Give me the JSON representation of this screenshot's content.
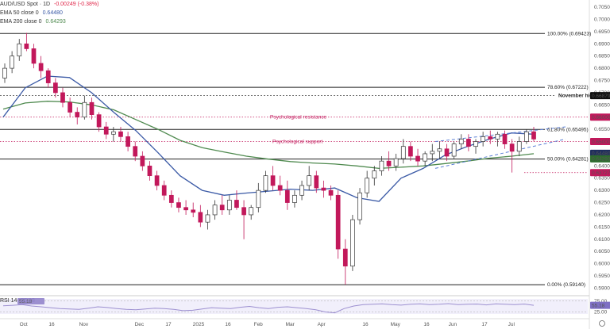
{
  "header": {
    "symbol": "AUD/USD Spot · 1D",
    "change": "-0.00249 (-0.38%)",
    "ema50_label": "EMA 50 close 0",
    "ema50_value": "0.64480",
    "ema200_label": "EMA 200 close 0",
    "ema200_value": "0.64293"
  },
  "rsi": {
    "label": "RSI 14",
    "value": "55.18",
    "value_badge": "55.18",
    "value_axis": "55.18",
    "levels": [
      "75.00",
      "25.00"
    ]
  },
  "colors": {
    "ema50": "#3b5aa6",
    "ema200": "#4f8a4f",
    "candle_up": "#ffffff",
    "candle_down": "#c2185b",
    "annotation": "#c2185b",
    "trendline": "#5b7fd6",
    "rsi": "#9c8fd0"
  },
  "chart_data": {
    "type": "candlestick",
    "ylim": [
      0.5885,
      0.706
    ],
    "y_ticks": [
      "0.70500",
      "0.70000",
      "0.69500",
      "0.69000",
      "0.68500",
      "0.68000",
      "0.67500",
      "0.67000",
      "0.66500",
      "0.66000",
      "0.65500",
      "0.65000",
      "0.64500",
      "0.64000",
      "0.63500",
      "0.63000",
      "0.62500",
      "0.62000",
      "0.61500",
      "0.61000",
      "0.60500",
      "0.60000",
      "0.59500",
      "0.59000"
    ],
    "x_ticks": [
      "Oct",
      "16",
      "Nov",
      "Dec",
      "17",
      "2025",
      "16",
      "Feb",
      "Mar",
      "Apr",
      "16",
      "May",
      "16",
      "Jun",
      "17",
      "Jul"
    ],
    "fib_levels": [
      {
        "label": "100.00% (0.69423)",
        "value": 0.69423
      },
      {
        "label": "78.60% (0.67222)",
        "value": 0.67222
      },
      {
        "label": "61.80% (0.65495)",
        "value": 0.65495
      },
      {
        "label": "50.00% (0.64281)",
        "value": 0.64281
      },
      {
        "label": "0.00% (0.59140)",
        "value": 0.5914
      }
    ],
    "reference_levels": [
      {
        "label": "November high",
        "value": 0.66879,
        "badge": "0.66879"
      },
      {
        "label": "Psychological resistance",
        "value": 0.66,
        "badge": "0.66000"
      },
      {
        "label": "Psychological support",
        "value": 0.65,
        "badge": "0.65000"
      },
      {
        "label": "",
        "value": 0.63727,
        "badge": "0.63727"
      }
    ],
    "price_badges": [
      "0.64480",
      "0.64293"
    ],
    "ema50": [
      0.66,
      0.672,
      0.6768,
      0.6762,
      0.67,
      0.662,
      0.6545,
      0.6455,
      0.636,
      0.63,
      0.628,
      0.6289,
      0.6297,
      0.6305,
      0.63,
      0.631,
      0.627,
      0.6255,
      0.635,
      0.639,
      0.6445,
      0.648,
      0.651,
      0.6535,
      0.653
    ],
    "ema200": [
      0.6633,
      0.6658,
      0.6665,
      0.6662,
      0.665,
      0.663,
      0.659,
      0.655,
      0.6505,
      0.6475,
      0.6457,
      0.644,
      0.6428,
      0.6418,
      0.6412,
      0.6408,
      0.64,
      0.639,
      0.6395,
      0.64,
      0.641,
      0.642,
      0.6432,
      0.644,
      0.645
    ],
    "candles": [
      [
        0.676,
        0.682,
        0.674,
        0.68
      ],
      [
        0.68,
        0.687,
        0.678,
        0.685
      ],
      [
        0.685,
        0.692,
        0.683,
        0.69
      ],
      [
        0.69,
        0.6945,
        0.687,
        0.688
      ],
      [
        0.688,
        0.69,
        0.68,
        0.682
      ],
      [
        0.682,
        0.685,
        0.676,
        0.679
      ],
      [
        0.679,
        0.68,
        0.672,
        0.674
      ],
      [
        0.674,
        0.676,
        0.668,
        0.67
      ],
      [
        0.67,
        0.672,
        0.664,
        0.666
      ],
      [
        0.666,
        0.668,
        0.66,
        0.662
      ],
      [
        0.662,
        0.664,
        0.657,
        0.66
      ],
      [
        0.66,
        0.6688,
        0.659,
        0.666
      ],
      [
        0.666,
        0.668,
        0.659,
        0.661
      ],
      [
        0.661,
        0.662,
        0.654,
        0.656
      ],
      [
        0.656,
        0.658,
        0.651,
        0.653
      ],
      [
        0.653,
        0.656,
        0.65,
        0.654
      ],
      [
        0.654,
        0.656,
        0.65,
        0.652
      ],
      [
        0.652,
        0.654,
        0.646,
        0.648
      ],
      [
        0.648,
        0.65,
        0.642,
        0.644
      ],
      [
        0.644,
        0.646,
        0.638,
        0.64
      ],
      [
        0.64,
        0.642,
        0.634,
        0.636
      ],
      [
        0.636,
        0.638,
        0.63,
        0.632
      ],
      [
        0.632,
        0.634,
        0.626,
        0.628
      ],
      [
        0.628,
        0.63,
        0.623,
        0.625
      ],
      [
        0.625,
        0.627,
        0.621,
        0.623
      ],
      [
        0.623,
        0.626,
        0.62,
        0.622
      ],
      [
        0.622,
        0.625,
        0.619,
        0.621
      ],
      [
        0.621,
        0.624,
        0.615,
        0.617
      ],
      [
        0.617,
        0.622,
        0.614,
        0.62
      ],
      [
        0.62,
        0.626,
        0.618,
        0.624
      ],
      [
        0.624,
        0.628,
        0.62,
        0.622
      ],
      [
        0.622,
        0.628,
        0.62,
        0.626
      ],
      [
        0.626,
        0.63,
        0.622,
        0.623
      ],
      [
        0.623,
        0.626,
        0.61,
        0.62
      ],
      [
        0.62,
        0.624,
        0.618,
        0.623
      ],
      [
        0.623,
        0.633,
        0.621,
        0.63
      ],
      [
        0.63,
        0.638,
        0.629,
        0.636
      ],
      [
        0.636,
        0.64,
        0.63,
        0.632
      ],
      [
        0.632,
        0.636,
        0.628,
        0.63
      ],
      [
        0.63,
        0.634,
        0.622,
        0.625
      ],
      [
        0.625,
        0.63,
        0.623,
        0.628
      ],
      [
        0.628,
        0.634,
        0.626,
        0.632
      ],
      [
        0.632,
        0.64,
        0.63,
        0.636
      ],
      [
        0.636,
        0.638,
        0.629,
        0.631
      ],
      [
        0.631,
        0.634,
        0.627,
        0.63
      ],
      [
        0.63,
        0.632,
        0.626,
        0.628
      ],
      [
        0.628,
        0.63,
        0.602,
        0.606
      ],
      [
        0.606,
        0.61,
        0.5914,
        0.599
      ],
      [
        0.599,
        0.62,
        0.597,
        0.618
      ],
      [
        0.618,
        0.631,
        0.616,
        0.629
      ],
      [
        0.629,
        0.638,
        0.627,
        0.635
      ],
      [
        0.635,
        0.64,
        0.632,
        0.638
      ],
      [
        0.638,
        0.644,
        0.636,
        0.642
      ],
      [
        0.642,
        0.646,
        0.638,
        0.64
      ],
      [
        0.64,
        0.645,
        0.638,
        0.643
      ],
      [
        0.643,
        0.651,
        0.641,
        0.648
      ],
      [
        0.648,
        0.65,
        0.642,
        0.644
      ],
      [
        0.644,
        0.647,
        0.64,
        0.642
      ],
      [
        0.642,
        0.646,
        0.64,
        0.645
      ],
      [
        0.645,
        0.649,
        0.642,
        0.646
      ],
      [
        0.646,
        0.65,
        0.643,
        0.647
      ],
      [
        0.647,
        0.649,
        0.642,
        0.644
      ],
      [
        0.644,
        0.65,
        0.643,
        0.649
      ],
      [
        0.649,
        0.653,
        0.647,
        0.651
      ],
      [
        0.651,
        0.653,
        0.646,
        0.648
      ],
      [
        0.648,
        0.651,
        0.645,
        0.65
      ],
      [
        0.65,
        0.654,
        0.648,
        0.652
      ],
      [
        0.652,
        0.6545,
        0.649,
        0.651
      ],
      [
        0.651,
        0.654,
        0.648,
        0.653
      ],
      [
        0.653,
        0.6545,
        0.647,
        0.649
      ],
      [
        0.649,
        0.651,
        0.6373,
        0.646
      ],
      [
        0.646,
        0.652,
        0.644,
        0.65
      ],
      [
        0.65,
        0.655,
        0.649,
        0.654
      ],
      [
        0.654,
        0.656,
        0.65,
        0.651
      ]
    ],
    "rsi": [
      53,
      55,
      58,
      52,
      48,
      44,
      40,
      38,
      36,
      42,
      48,
      45,
      40,
      36,
      34,
      38,
      42,
      40,
      36,
      30,
      32,
      38,
      44,
      42,
      40,
      46,
      50,
      44,
      40,
      46,
      48,
      44,
      40,
      34,
      24,
      20,
      40,
      52,
      58,
      60,
      62,
      58,
      56,
      60,
      62,
      58,
      60,
      63,
      58,
      60,
      61,
      57,
      62,
      60,
      58,
      61,
      55
    ]
  }
}
